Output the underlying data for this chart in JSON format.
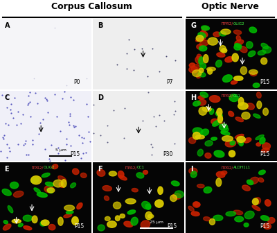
{
  "title_left": "Corpus Callosum",
  "title_right": "Optic Nerve",
  "bg_color": "#ffffff",
  "panel_bg_CC": "#e8e8f0",
  "panel_bg_ON": "#000000",
  "labels": {
    "A": {
      "text": "A",
      "timepoint": "P0"
    },
    "B": {
      "text": "B",
      "timepoint": "P7"
    },
    "C": {
      "text": "C",
      "timepoint": "P15"
    },
    "D": {
      "text": "D",
      "timepoint": "P30"
    },
    "E": {
      "text": "E",
      "timepoint": "P15",
      "markers": "ITPR2/OLIG2"
    },
    "F": {
      "text": "F",
      "timepoint": "P15",
      "markers": "ITPR2/CC1"
    },
    "G": {
      "text": "G",
      "timepoint": "P15",
      "markers": "ITPR2/OLIG2"
    },
    "H": {
      "text": "H",
      "timepoint": "P15",
      "markers": "ITPR2/CC1"
    },
    "I": {
      "text": "I",
      "timepoint": "P15",
      "markers": "ITPR2/ALDH1L1"
    }
  },
  "scale_bar_CD": "5 μm",
  "scale_bar_FI": "25 μm",
  "header_line_color": "#000000",
  "label_color_ITPR2": "#ff4444",
  "label_color_OLIG2": "#44ff44",
  "label_color_CC1": "#44ff44",
  "label_color_ALDH1L1": "#44ff44"
}
